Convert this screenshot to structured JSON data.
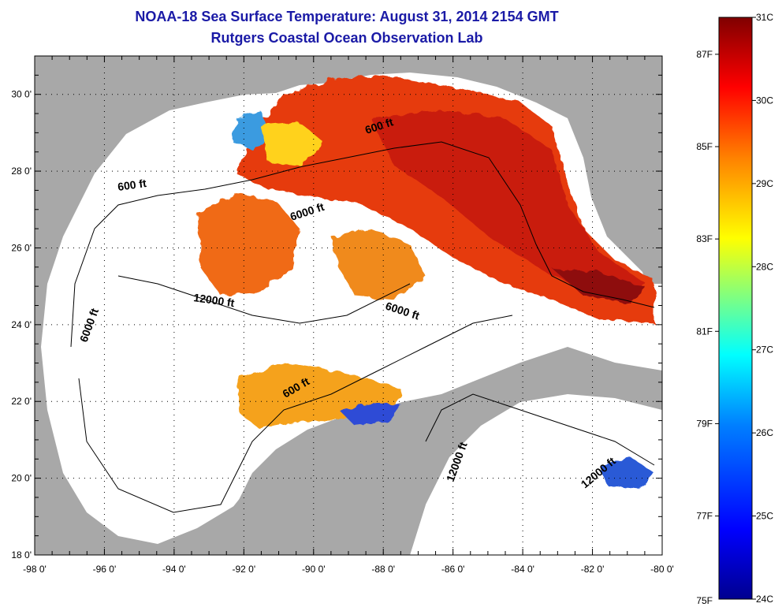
{
  "title": "NOAA-18 Sea Surface Temperature:  August 31, 2014 2154 GMT",
  "subtitle": "Rutgers Coastal Ocean Observation Lab",
  "map": {
    "lon_ticks": [
      "-98 0'",
      "-96 0'",
      "-94 0'",
      "-92 0'",
      "-90 0'",
      "-88 0'",
      "-86 0'",
      "-84 0'",
      "-82 0'",
      "-80 0'"
    ],
    "lat_ticks": [
      "30 0'",
      "28 0'",
      "26 0'",
      "24 0'",
      "22 0'",
      "20 0'",
      "18 0'"
    ],
    "lon_range": [
      -98,
      -80
    ],
    "lat_range": [
      18,
      31
    ],
    "gridlines": "dotted",
    "contour_labels": [
      "600 ft",
      "600 ft",
      "6000 ft",
      "12000 ft",
      "6000 ft",
      "6000 ft",
      "600 ft",
      "12000 ft",
      "12000 ft"
    ],
    "colors": {
      "land": "#a8a8a8",
      "ocean_nodata": "#ffffff"
    }
  },
  "colorbar": {
    "celsius_labels": [
      "31C",
      "30C",
      "29C",
      "28C",
      "27C",
      "26C",
      "25C",
      "24C"
    ],
    "fahrenheit_labels": [
      "87F",
      "85F",
      "83F",
      "81F",
      "79F",
      "77F",
      "75F"
    ],
    "range_c": [
      24,
      31
    ],
    "colors": [
      "#00008f",
      "#0000ff",
      "#0080ff",
      "#00ffff",
      "#80ff80",
      "#ffff00",
      "#ff8000",
      "#ff0000",
      "#800000"
    ]
  }
}
